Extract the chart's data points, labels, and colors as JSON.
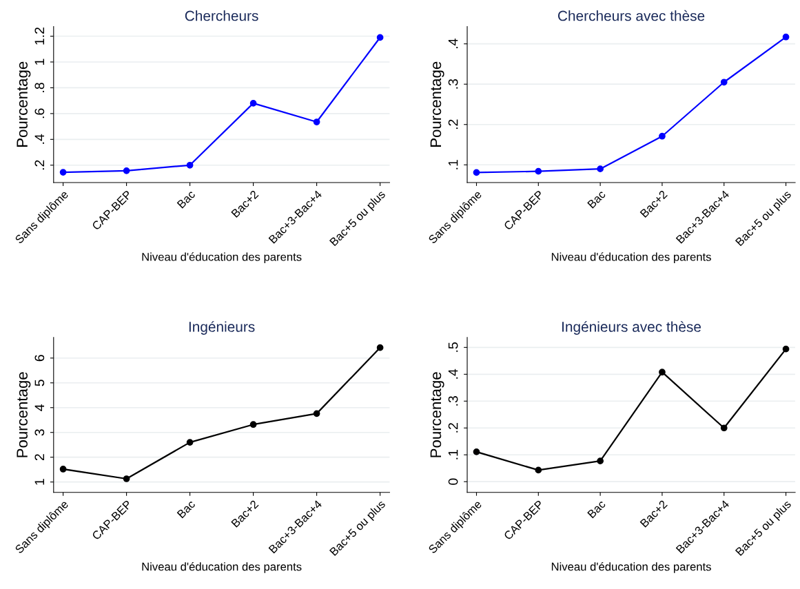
{
  "chart_data": [
    {
      "type": "line",
      "title": "Chercheurs",
      "xlabel": "Niveau d'éducation des parents",
      "ylabel": "Pourcentage",
      "categories": [
        "Sans diplôme",
        "CAP-BEP",
        "Bac",
        "Bac+2",
        "Bac+3-Bac+4",
        "Bac+5 ou plus"
      ],
      "series": [
        {
          "color": "#0000ff",
          "values": [
            0.145,
            0.157,
            0.2,
            0.68,
            0.535,
            1.19
          ]
        }
      ],
      "ylim": [
        0.065,
        1.275
      ],
      "yticks": [
        {
          "value": 0.2,
          "label": ".2"
        },
        {
          "value": 0.4,
          "label": ".4"
        },
        {
          "value": 0.6,
          "label": ".6"
        },
        {
          "value": 0.8,
          "label": ".8"
        },
        1,
        1.2
      ],
      "grid": "y",
      "marker": "circle",
      "line_style": "solid"
    },
    {
      "type": "line",
      "title": "Chercheurs avec thèse",
      "xlabel": "Niveau d'éducation des parents",
      "ylabel": "Pourcentage",
      "categories": [
        "Sans diplôme",
        "CAP-BEP",
        "Bac",
        "Bac+2",
        "Bac+3-Bac+4",
        "Bac+5 ou plus"
      ],
      "series": [
        {
          "color": "#0000ff",
          "values": [
            0.081,
            0.084,
            0.09,
            0.171,
            0.305,
            0.417
          ]
        }
      ],
      "ylim": [
        0.056,
        0.443
      ],
      "yticks": [
        {
          "value": 0.1,
          "label": ".1"
        },
        {
          "value": 0.2,
          "label": ".2"
        },
        {
          "value": 0.3,
          "label": ".3"
        },
        {
          "value": 0.4,
          "label": ".4"
        }
      ],
      "grid": "y",
      "marker": "circle",
      "line_style": "solid"
    },
    {
      "type": "line",
      "title": "Ingénieurs",
      "xlabel": "Niveau d'éducation des parents",
      "ylabel": "Pourcentage",
      "categories": [
        "Sans diplôme",
        "CAP-BEP",
        "Bac",
        "Bac+2",
        "Bac+3-Bac+4",
        "Bac+5 ou plus"
      ],
      "series": [
        {
          "color": "#000000",
          "values": [
            1.52,
            1.13,
            2.6,
            3.32,
            3.76,
            6.42
          ]
        }
      ],
      "ylim": [
        0.58,
        6.83
      ],
      "yticks": [
        1,
        2,
        3,
        4,
        5,
        6
      ],
      "grid": "y",
      "marker": "circle",
      "line_style": "solid"
    },
    {
      "type": "line",
      "title": "Ingénieurs avec thèse",
      "xlabel": "Niveau d'éducation des parents",
      "ylabel": "Pourcentage",
      "categories": [
        "Sans diplôme",
        "CAP-BEP",
        "Bac",
        "Bac+2",
        "Bac+3-Bac+4",
        "Bac+5 ou plus"
      ],
      "series": [
        {
          "color": "#000000",
          "values": [
            0.111,
            0.043,
            0.077,
            0.408,
            0.2,
            0.494
          ]
        }
      ],
      "ylim": [
        -0.04,
        0.537
      ],
      "yticks": [
        0,
        {
          "value": 0.1,
          "label": ".1"
        },
        {
          "value": 0.2,
          "label": ".2"
        },
        {
          "value": 0.3,
          "label": ".3"
        },
        {
          "value": 0.4,
          "label": ".4"
        },
        {
          "value": 0.5,
          "label": ".5"
        }
      ],
      "grid": "y",
      "marker": "circle",
      "line_style": "solid"
    }
  ]
}
